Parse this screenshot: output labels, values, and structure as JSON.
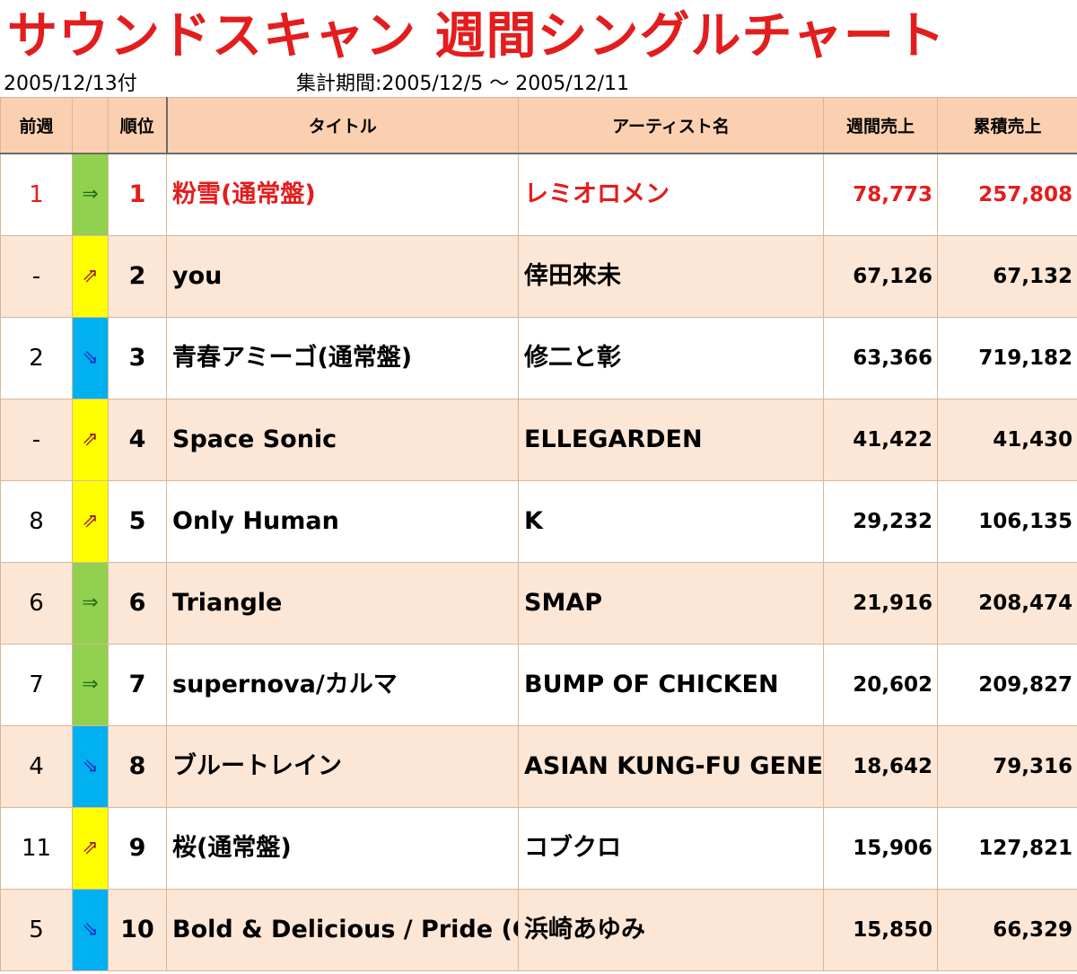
{
  "header": {
    "title": "サウンドスキャン 週間シングルチャート",
    "date_label": "2005/12/13付",
    "period_label": "集計期間:2005/12/5 ～ 2005/12/11"
  },
  "columns": {
    "prev_week": "前週",
    "movement": "",
    "rank": "順位",
    "title": "タイトル",
    "artist": "アーティスト名",
    "weekly_sales": "週間売上",
    "total_sales": "累積売上"
  },
  "colors": {
    "header_bg": "#fbd0b0",
    "alt_row_bg": "#fce6d6",
    "title_red": "#e31d1d",
    "up_yellow": "#ffff00",
    "down_blue": "#00b0f0",
    "same_green": "#92d050"
  },
  "rows": [
    {
      "prev": "1",
      "move": "same",
      "arrow": "⇒",
      "rank": "1",
      "title": "粉雪(通常盤)",
      "artist": "レミオロメン",
      "weekly": "78,773",
      "total": "257,808"
    },
    {
      "prev": "-",
      "move": "up",
      "arrow": "⇗",
      "rank": "2",
      "title": "you",
      "artist": "倖田來未",
      "weekly": "67,126",
      "total": "67,132"
    },
    {
      "prev": "2",
      "move": "down",
      "arrow": "⇘",
      "rank": "3",
      "title": "青春アミーゴ(通常盤)",
      "artist": "修二と彰",
      "weekly": "63,366",
      "total": "719,182"
    },
    {
      "prev": "-",
      "move": "up",
      "arrow": "⇗",
      "rank": "4",
      "title": "Space Sonic",
      "artist": "ELLEGARDEN",
      "weekly": "41,422",
      "total": "41,430"
    },
    {
      "prev": "8",
      "move": "up",
      "arrow": "⇗",
      "rank": "5",
      "title": "Only Human",
      "artist": "K",
      "weekly": "29,232",
      "total": "106,135"
    },
    {
      "prev": "6",
      "move": "same",
      "arrow": "⇒",
      "rank": "6",
      "title": "Triangle",
      "artist": "SMAP",
      "weekly": "21,916",
      "total": "208,474"
    },
    {
      "prev": "7",
      "move": "same",
      "arrow": "⇒",
      "rank": "7",
      "title": "supernova/カルマ",
      "artist": "BUMP OF CHICKEN",
      "weekly": "20,602",
      "total": "209,827"
    },
    {
      "prev": "4",
      "move": "down",
      "arrow": "⇘",
      "rank": "8",
      "title": "ブルートレイン",
      "artist": "ASIAN KUNG-FU GENERATION",
      "weekly": "18,642",
      "total": "79,316"
    },
    {
      "prev": "11",
      "move": "up",
      "arrow": "⇗",
      "rank": "9",
      "title": "桜(通常盤)",
      "artist": "コブクロ",
      "weekly": "15,906",
      "total": "127,821"
    },
    {
      "prev": "5",
      "move": "down",
      "arrow": "⇘",
      "rank": "10",
      "title": "Bold & Delicious / Pride (CD+DVD)",
      "artist": "浜崎あゆみ",
      "weekly": "15,850",
      "total": "66,329"
    }
  ]
}
